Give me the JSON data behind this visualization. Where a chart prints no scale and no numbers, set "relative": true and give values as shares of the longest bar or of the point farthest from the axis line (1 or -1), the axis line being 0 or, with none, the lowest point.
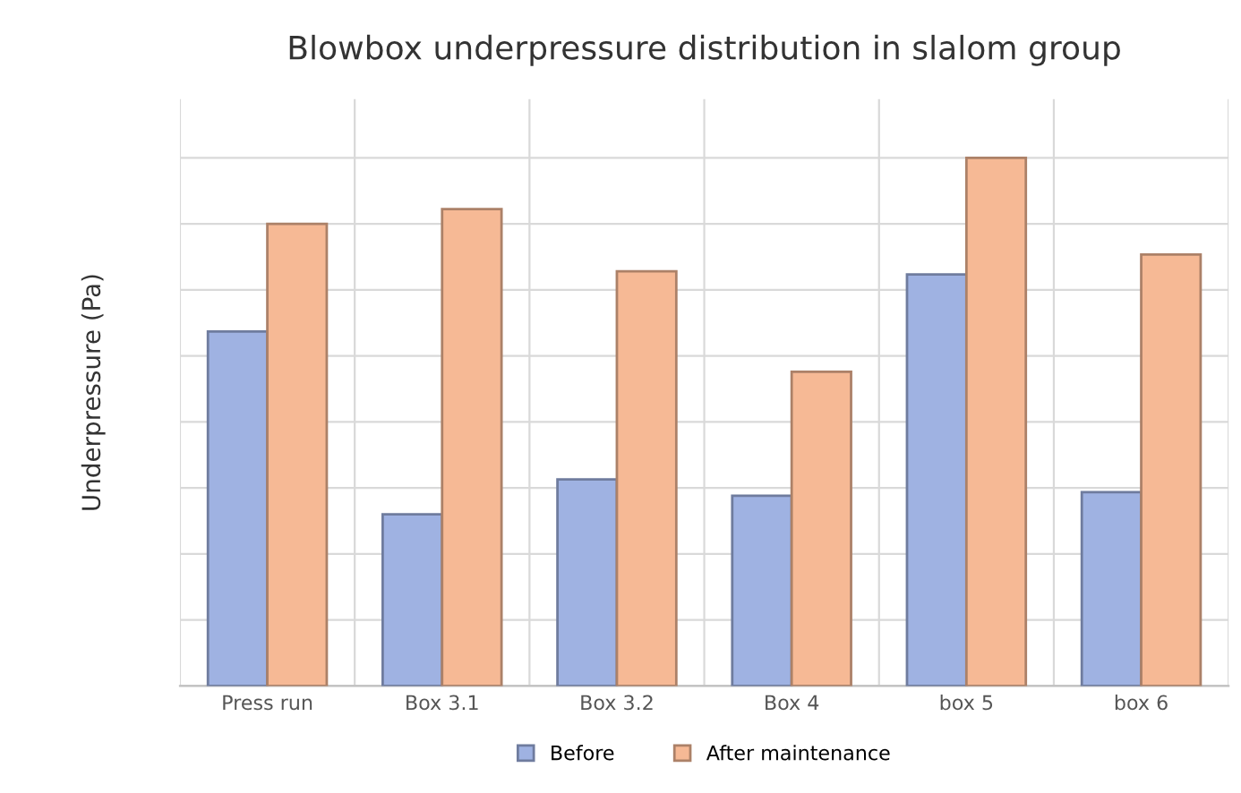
{
  "chart_data": {
    "type": "bar",
    "title": "Blowbox underpressure distribution in slalom group",
    "ylabel": "Underpressure (Pa)",
    "categories": [
      "Press run",
      "Box 3.1",
      "Box 3.2",
      "Box 4",
      "box 5",
      "box 6"
    ],
    "relative": true,
    "grid": true,
    "legend": "bottom",
    "series": [
      {
        "name": "Before",
        "color": "#9fb2e2",
        "values": [
          0.671,
          0.325,
          0.391,
          0.36,
          0.779,
          0.367
        ]
      },
      {
        "name": "After maintenance",
        "color": "#f6b995",
        "values": [
          0.875,
          0.903,
          0.785,
          0.595,
          1.0,
          0.817
        ]
      }
    ]
  }
}
